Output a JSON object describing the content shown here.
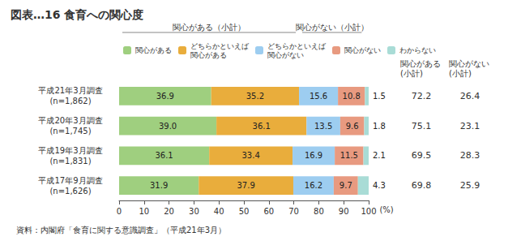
{
  "chart_data": {
    "type": "bar",
    "title": "図表…16 食育への関心度",
    "source": "資料：内閣府「食育に関する意識調査」（平成21年3月）",
    "orientation": "horizontal",
    "stacked": true,
    "data_labels": true,
    "grid": false,
    "legend": "top",
    "xlabel": "(%)",
    "xlim": [
      0,
      100
    ],
    "xticks": [
      0,
      10,
      20,
      30,
      40,
      50,
      60,
      70,
      80,
      90,
      100
    ],
    "categories": [
      "平成21年3月調査\n(n=1,862)",
      "平成20年3月調査\n(n=1,745)",
      "平成19年3月調査\n(n=1,831)",
      "平成17年9月調査\n(n=1,626)"
    ],
    "series": [
      {
        "name": "関心がある",
        "color": "#9fcf7f",
        "values": [
          36.9,
          39.0,
          36.1,
          31.9
        ],
        "value_labels": [
          "36.9",
          "39.0",
          "36.1",
          "31.9"
        ]
      },
      {
        "name": "どちらかといえば\n関心がある",
        "color": "#e9ad3c",
        "values": [
          35.2,
          36.1,
          33.4,
          37.9
        ],
        "value_labels": [
          "35.2",
          "36.1",
          "33.4",
          "37.9"
        ]
      },
      {
        "name": "どちらかといえば\n関心がない",
        "color": "#9dcdf0",
        "values": [
          15.6,
          13.5,
          16.9,
          16.2
        ],
        "value_labels": [
          "15.6",
          "13.5",
          "16.9",
          "16.2"
        ]
      },
      {
        "name": "関心がない",
        "color": "#e89a80",
        "values": [
          10.8,
          9.6,
          11.5,
          9.7
        ],
        "value_labels": [
          "10.8",
          "9.6",
          "11.5",
          "9.7"
        ]
      },
      {
        "name": "わからない",
        "color": "#a9dcd6",
        "values": [
          1.5,
          1.8,
          2.1,
          4.3
        ],
        "value_labels": [
          "1.5",
          "1.8",
          "2.1",
          "4.3"
        ]
      }
    ],
    "subtotals": [
      {
        "name": "関心がある\n(小計)",
        "group_label": "関心がある（小計）",
        "values": [
          72.2,
          75.1,
          69.5,
          69.8
        ],
        "value_labels": [
          "72.2",
          "75.1",
          "69.5",
          "69.8"
        ]
      },
      {
        "name": "関心がない\n(小計)",
        "group_label": "関心がない（小計）",
        "values": [
          26.4,
          23.1,
          28.3,
          25.9
        ],
        "value_labels": [
          "26.4",
          "23.1",
          "28.3",
          "25.9"
        ]
      }
    ]
  }
}
